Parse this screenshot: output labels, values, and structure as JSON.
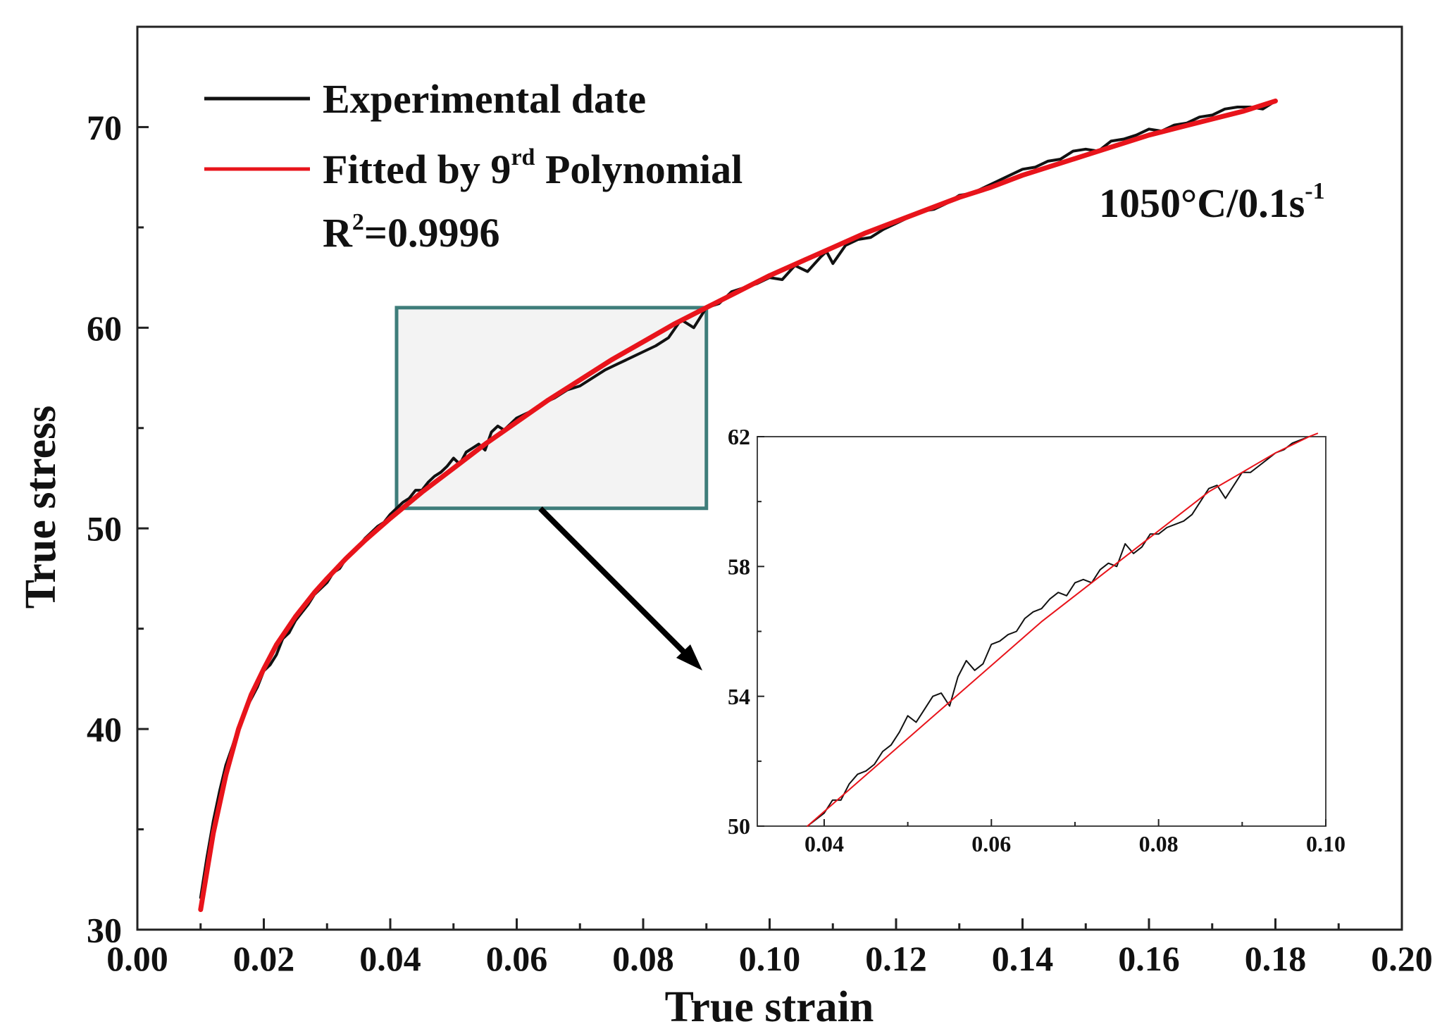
{
  "chart_data": [
    {
      "type": "line",
      "title": "",
      "xlabel": "True strain",
      "ylabel": "True stress",
      "xlim": [
        0.0,
        0.2
      ],
      "ylim": [
        30,
        75
      ],
      "xticks": [
        0.0,
        0.02,
        0.04,
        0.06,
        0.08,
        0.1,
        0.12,
        0.14,
        0.16,
        0.18,
        0.2
      ],
      "xtick_labels": [
        "0.00",
        "0.02",
        "0.04",
        "0.06",
        "0.08",
        "0.10",
        "0.12",
        "0.14",
        "0.16",
        "0.18",
        "0.20"
      ],
      "yticks": [
        30,
        40,
        50,
        60,
        70
      ],
      "ytick_labels": [
        "30",
        "40",
        "50",
        "60",
        "70"
      ],
      "legend": {
        "position": "top-left",
        "entries": [
          {
            "label": "Experimental date",
            "color": "#111111"
          },
          {
            "label_main": "Fitted by 9",
            "label_sup": "rd",
            "label_tail": " Polynomial",
            "color": "#e8141b"
          }
        ],
        "r2_prefix": "R",
        "r2_sup": "2",
        "r2_value": "=0.9996"
      },
      "annotation": {
        "text_main": "1050°C/0.1s",
        "text_sup": "-1"
      },
      "series": [
        {
          "name": "Fitted by 9rd Polynomial",
          "color": "#e8141b",
          "x": [
            0.01,
            0.012,
            0.014,
            0.016,
            0.018,
            0.02,
            0.022,
            0.025,
            0.028,
            0.03,
            0.033,
            0.036,
            0.04,
            0.045,
            0.05,
            0.055,
            0.06,
            0.065,
            0.07,
            0.075,
            0.08,
            0.085,
            0.09,
            0.095,
            0.1,
            0.105,
            0.11,
            0.115,
            0.12,
            0.125,
            0.13,
            0.135,
            0.14,
            0.145,
            0.15,
            0.155,
            0.16,
            0.165,
            0.17,
            0.175,
            0.18
          ],
          "y": [
            31.0,
            34.8,
            37.7,
            40.0,
            41.7,
            43.0,
            44.2,
            45.6,
            46.8,
            47.5,
            48.5,
            49.4,
            50.5,
            51.8,
            53.0,
            54.2,
            55.3,
            56.4,
            57.4,
            58.4,
            59.3,
            60.2,
            61.0,
            61.8,
            62.6,
            63.3,
            64.0,
            64.7,
            65.3,
            65.9,
            66.5,
            67.0,
            67.6,
            68.1,
            68.6,
            69.1,
            69.6,
            70.0,
            70.4,
            70.8,
            71.3
          ]
        },
        {
          "name": "Experimental date",
          "color": "#111111",
          "x": [
            0.01,
            0.011,
            0.012,
            0.013,
            0.014,
            0.015,
            0.016,
            0.017,
            0.018,
            0.019,
            0.02,
            0.021,
            0.022,
            0.023,
            0.024,
            0.025,
            0.026,
            0.027,
            0.028,
            0.029,
            0.03,
            0.031,
            0.032,
            0.033,
            0.034,
            0.035,
            0.036,
            0.037,
            0.038,
            0.039,
            0.04,
            0.041,
            0.042,
            0.043,
            0.044,
            0.045,
            0.046,
            0.047,
            0.048,
            0.049,
            0.05,
            0.051,
            0.052,
            0.053,
            0.054,
            0.055,
            0.056,
            0.057,
            0.058,
            0.059,
            0.06,
            0.062,
            0.064,
            0.066,
            0.068,
            0.07,
            0.072,
            0.074,
            0.076,
            0.078,
            0.08,
            0.082,
            0.084,
            0.086,
            0.087,
            0.088,
            0.09,
            0.092,
            0.094,
            0.096,
            0.098,
            0.1,
            0.102,
            0.104,
            0.106,
            0.108,
            0.109,
            0.11,
            0.112,
            0.114,
            0.116,
            0.118,
            0.12,
            0.122,
            0.124,
            0.126,
            0.128,
            0.13,
            0.132,
            0.134,
            0.136,
            0.138,
            0.14,
            0.142,
            0.144,
            0.146,
            0.148,
            0.15,
            0.152,
            0.154,
            0.156,
            0.158,
            0.16,
            0.162,
            0.164,
            0.166,
            0.168,
            0.17,
            0.172,
            0.174,
            0.176,
            0.178,
            0.18
          ],
          "y": [
            31.6,
            33.6,
            35.4,
            36.9,
            38.2,
            39.1,
            40.1,
            40.9,
            41.5,
            42.1,
            42.9,
            43.2,
            43.7,
            44.5,
            44.8,
            45.4,
            45.8,
            46.2,
            46.7,
            47.0,
            47.3,
            47.8,
            48.0,
            48.5,
            48.8,
            49.1,
            49.5,
            49.8,
            50.1,
            50.3,
            50.7,
            51.0,
            51.3,
            51.5,
            51.9,
            51.9,
            52.3,
            52.6,
            52.8,
            53.1,
            53.5,
            53.2,
            53.8,
            54.0,
            54.2,
            53.9,
            54.8,
            55.1,
            54.9,
            55.2,
            55.5,
            55.8,
            56.2,
            56.5,
            56.9,
            57.1,
            57.5,
            57.9,
            58.2,
            58.5,
            58.8,
            59.1,
            59.5,
            60.4,
            60.2,
            60.0,
            61.0,
            61.2,
            61.8,
            62.0,
            62.2,
            62.5,
            62.4,
            63.1,
            62.8,
            63.5,
            63.8,
            63.2,
            64.1,
            64.4,
            64.5,
            64.9,
            65.2,
            65.5,
            65.8,
            65.9,
            66.2,
            66.6,
            66.7,
            67.0,
            67.3,
            67.6,
            67.9,
            68.0,
            68.3,
            68.4,
            68.8,
            68.9,
            68.8,
            69.3,
            69.4,
            69.6,
            69.9,
            69.8,
            70.1,
            70.2,
            70.5,
            70.6,
            70.9,
            71.0,
            71.0,
            70.9,
            71.3
          ]
        }
      ],
      "zoom_region": {
        "x": [
          0.041,
          0.09
        ],
        "y": [
          51,
          61
        ]
      }
    },
    {
      "type": "line",
      "title": "",
      "xlabel": "",
      "ylabel": "",
      "xlim": [
        0.032,
        0.1
      ],
      "ylim": [
        50,
        62
      ],
      "xticks": [
        0.04,
        0.06,
        0.08,
        0.1
      ],
      "xtick_labels": [
        "0.04",
        "0.06",
        "0.08",
        "0.10"
      ],
      "yticks": [
        50,
        54,
        58,
        62
      ],
      "ytick_labels": [
        "50",
        "54",
        "58",
        "62"
      ],
      "series": [
        {
          "name": "Fitted by 9rd Polynomial",
          "color": "#e8141b",
          "x": [
            0.038,
            0.042,
            0.046,
            0.05,
            0.054,
            0.058,
            0.062,
            0.066,
            0.07,
            0.074,
            0.078,
            0.082,
            0.086,
            0.09,
            0.094,
            0.098,
            0.099
          ],
          "y": [
            50.0,
            50.9,
            51.8,
            52.7,
            53.6,
            54.5,
            55.4,
            56.3,
            57.1,
            57.9,
            58.7,
            59.5,
            60.3,
            60.9,
            61.5,
            62.0,
            62.1
          ]
        },
        {
          "name": "Experimental date",
          "color": "#111111",
          "x": [
            0.038,
            0.04,
            0.041,
            0.042,
            0.043,
            0.044,
            0.045,
            0.046,
            0.047,
            0.048,
            0.049,
            0.05,
            0.051,
            0.052,
            0.053,
            0.054,
            0.055,
            0.056,
            0.057,
            0.058,
            0.059,
            0.06,
            0.061,
            0.062,
            0.063,
            0.064,
            0.065,
            0.066,
            0.067,
            0.068,
            0.069,
            0.07,
            0.071,
            0.072,
            0.073,
            0.074,
            0.075,
            0.076,
            0.077,
            0.078,
            0.079,
            0.08,
            0.081,
            0.082,
            0.083,
            0.084,
            0.085,
            0.086,
            0.087,
            0.088,
            0.089,
            0.09,
            0.091,
            0.092,
            0.093,
            0.094,
            0.095,
            0.096,
            0.097,
            0.098
          ],
          "y": [
            50.0,
            50.4,
            50.8,
            50.8,
            51.3,
            51.6,
            51.7,
            51.9,
            52.3,
            52.5,
            52.9,
            53.4,
            53.2,
            53.6,
            54.0,
            54.1,
            53.7,
            54.6,
            55.1,
            54.8,
            55.0,
            55.6,
            55.7,
            55.9,
            56.0,
            56.4,
            56.6,
            56.7,
            57.0,
            57.2,
            57.1,
            57.5,
            57.6,
            57.5,
            57.9,
            58.1,
            58.0,
            58.7,
            58.4,
            58.6,
            59.0,
            59.0,
            59.2,
            59.3,
            59.4,
            59.6,
            60.0,
            60.4,
            60.5,
            60.1,
            60.5,
            60.9,
            60.9,
            61.1,
            61.3,
            61.5,
            61.6,
            61.8,
            61.9,
            62.0
          ]
        }
      ]
    }
  ]
}
